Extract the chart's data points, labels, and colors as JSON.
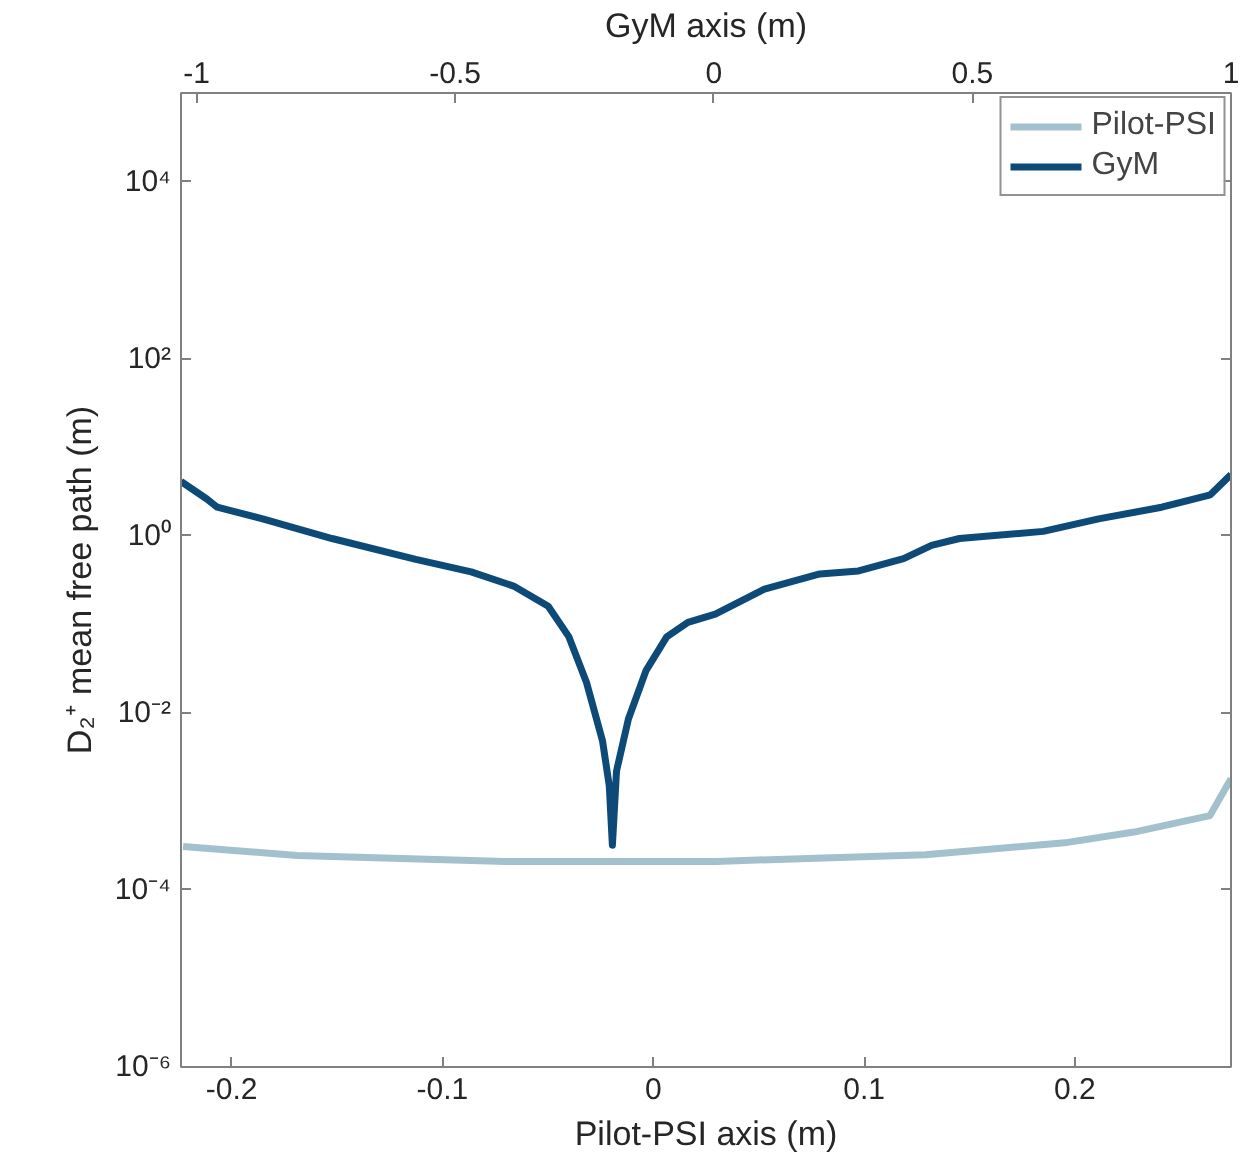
{
  "chart_data": {
    "type": "line",
    "xlabel": "Pilot-PSI axis (m)",
    "x2label": "GyM axis (m)",
    "ylabel": "D₂⁺ mean free path (m)",
    "xlim": [
      -0.224,
      0.274
    ],
    "xticks": [
      -0.2,
      -0.1,
      0,
      0.1,
      0.2
    ],
    "x2lim": [
      -1.03,
      1.0
    ],
    "x2ticks": [
      -1,
      -0.5,
      0,
      0.5,
      1
    ],
    "ylim": [
      1e-06,
      100000.0
    ],
    "yticks": [
      {
        "value": 1e-06,
        "label": "10⁻⁶"
      },
      {
        "value": 0.0001,
        "label": "10⁻⁴"
      },
      {
        "value": 0.01,
        "label": "10⁻²"
      },
      {
        "value": 1,
        "label": "10⁰"
      },
      {
        "value": 100,
        "label": "10²"
      },
      {
        "value": 10000,
        "label": "10⁴"
      }
    ],
    "log": "y",
    "grid": false,
    "legend": "top right",
    "line_style": "solid",
    "marker": "none",
    "series": [
      {
        "name": "Pilot-PSI",
        "color": "#a3c1cc",
        "x": [
          -0.223,
          -0.169,
          -0.07,
          0.03,
          0.129,
          0.195,
          0.228,
          0.264,
          0.274
        ],
        "values": [
          0.00031,
          0.000245,
          0.00021,
          0.00021,
          0.00025,
          0.00034,
          0.00045,
          0.00069,
          0.0018
        ]
      },
      {
        "name": "GyM",
        "color": "#0d4a78",
        "axis": "x2",
        "x": [
          -1.03,
          -0.98,
          -0.96,
          -0.872,
          -0.738,
          -0.576,
          -0.469,
          -0.387,
          -0.32,
          -0.28,
          -0.246,
          -0.215,
          -0.202,
          -0.196,
          -0.188,
          -0.165,
          -0.131,
          -0.091,
          -0.05,
          0.003,
          0.098,
          0.205,
          0.28,
          0.367,
          0.421,
          0.475,
          0.637,
          0.744,
          0.866,
          0.96,
          1.0
        ],
        "values": [
          4.1,
          2.6,
          2.1,
          1.55,
          0.93,
          0.54,
          0.39,
          0.27,
          0.16,
          0.072,
          0.022,
          0.0048,
          0.0015,
          0.00032,
          0.0022,
          0.0085,
          0.03,
          0.072,
          0.105,
          0.13,
          0.25,
          0.37,
          0.4,
          0.55,
          0.78,
          0.93,
          1.12,
          1.55,
          2.1,
          2.9,
          4.9
        ]
      }
    ]
  }
}
